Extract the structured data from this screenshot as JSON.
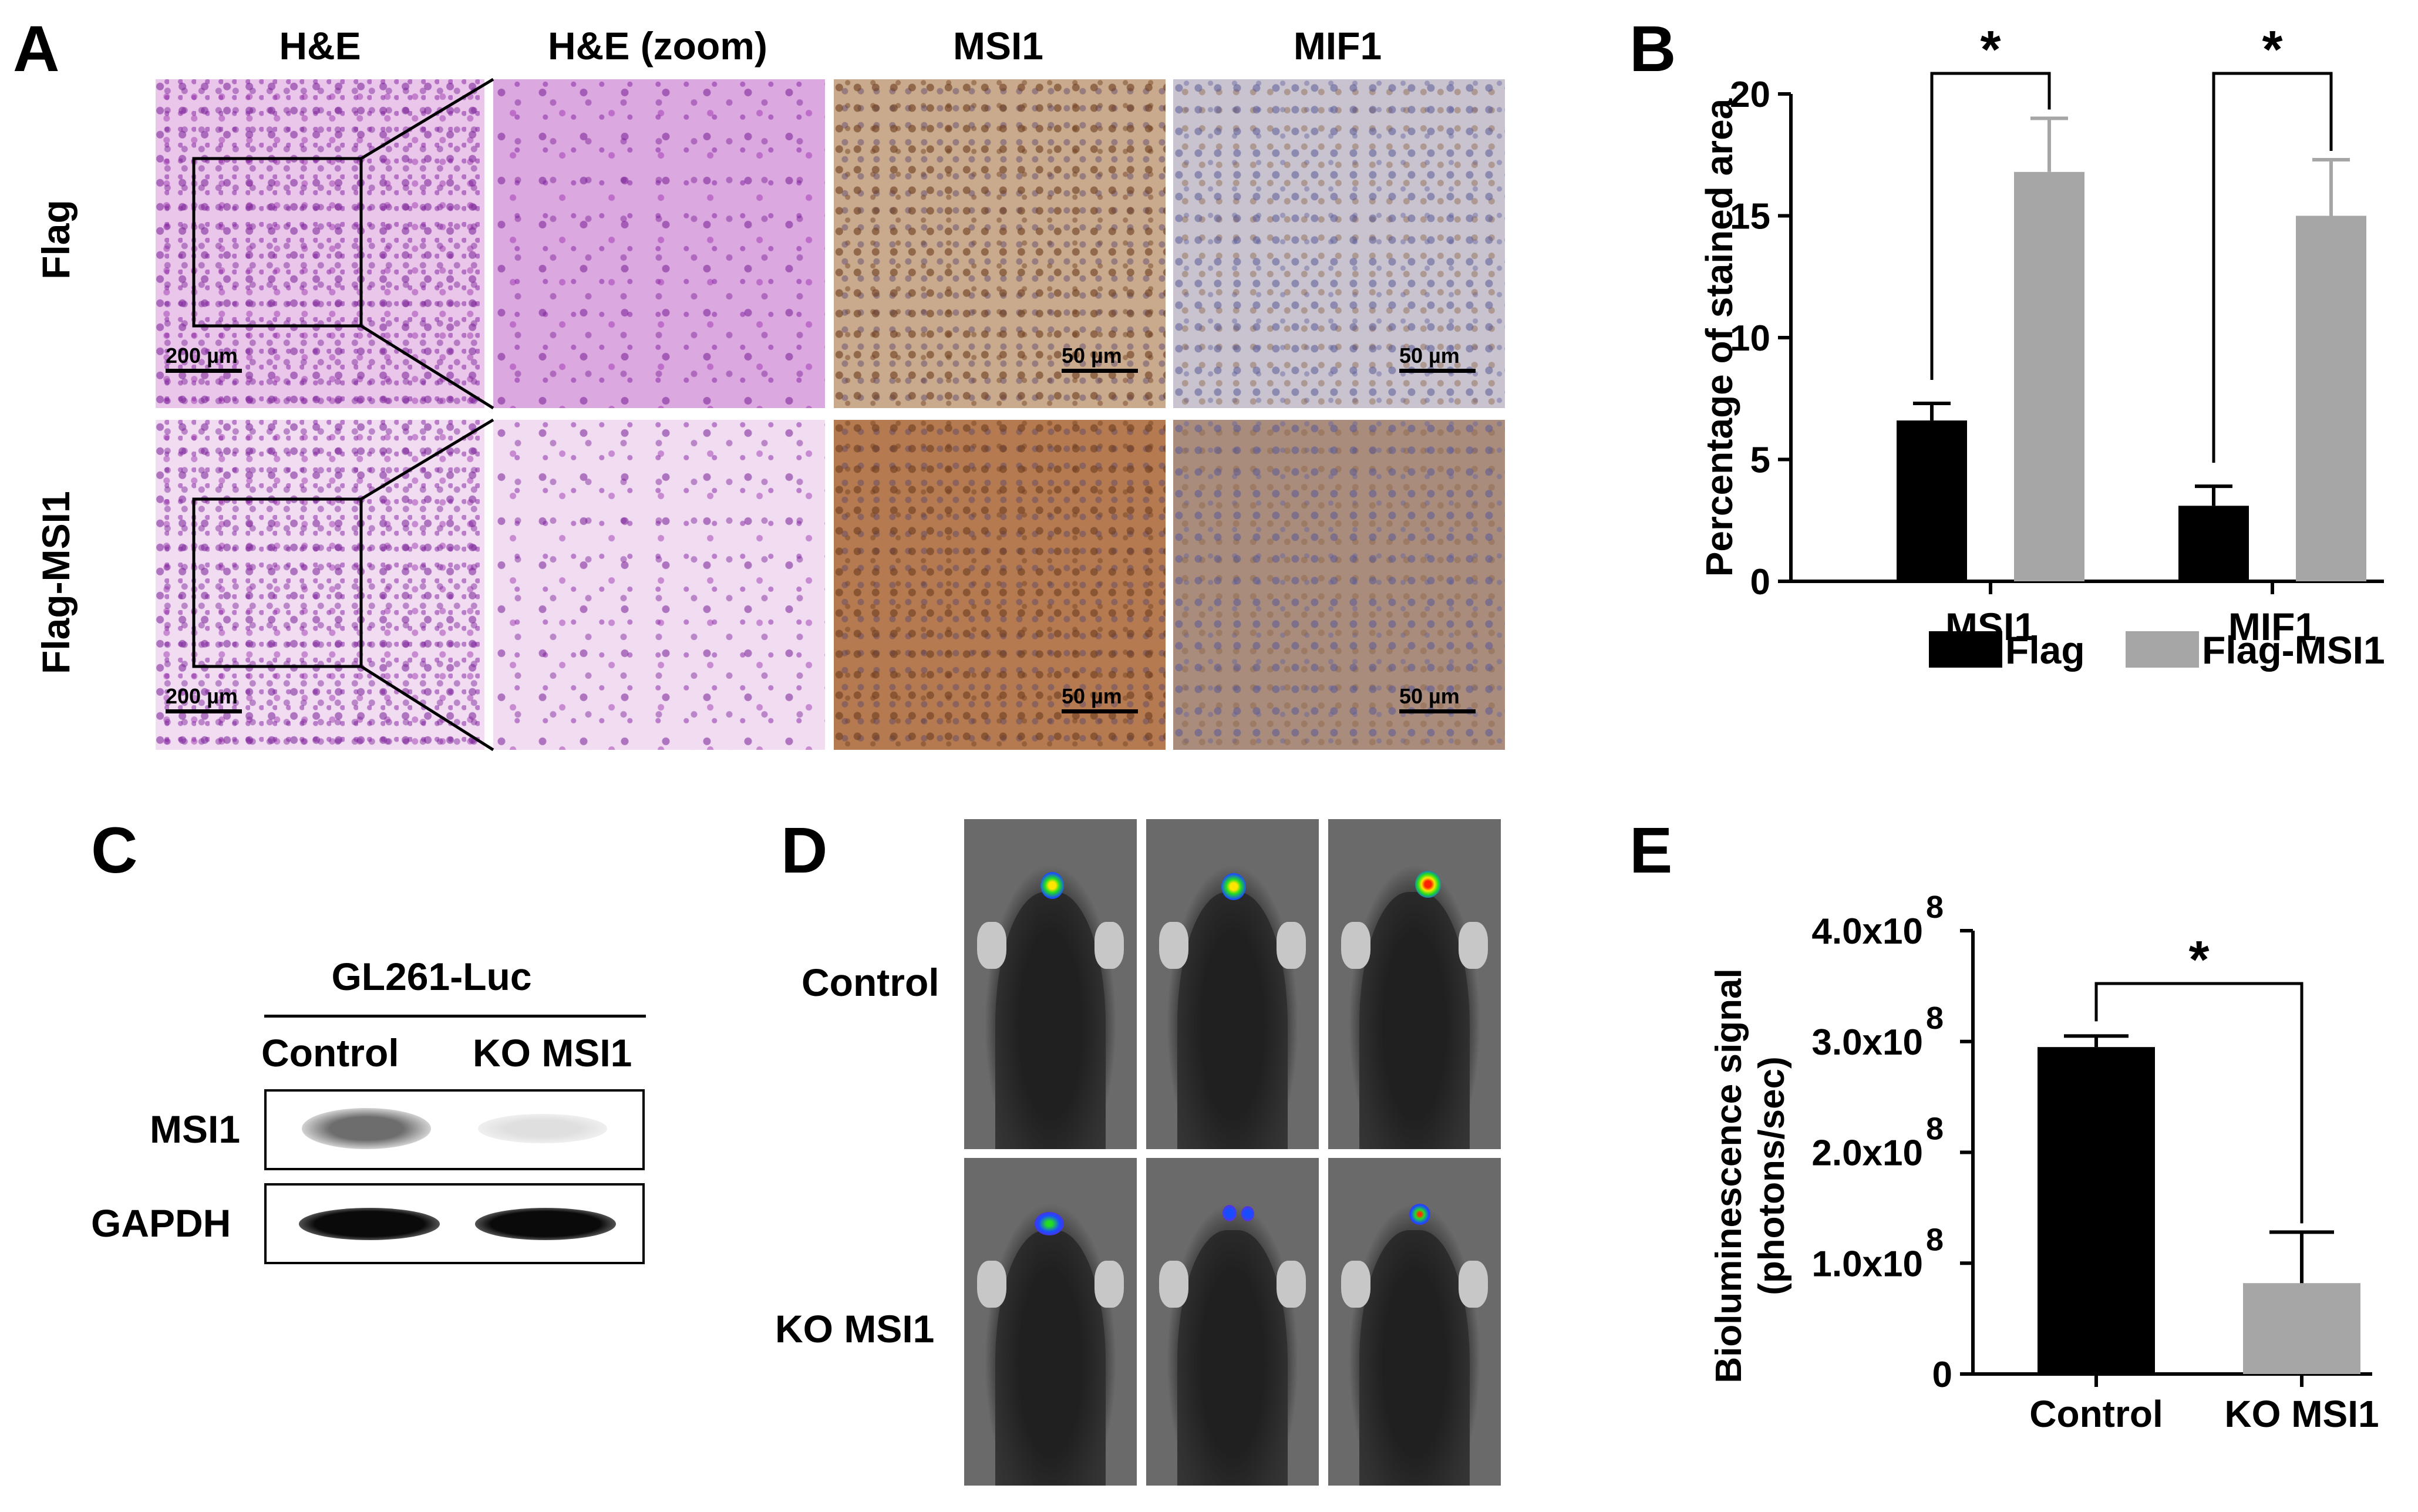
{
  "panel_a": {
    "letter": "A",
    "col_titles": [
      "H&E",
      "H&E (zoom)",
      "MSI1",
      "MIF1"
    ],
    "row_labels": [
      "Flag",
      "Flag-MSI1"
    ],
    "scale_200": "200 µm",
    "scale_50": "50 µm"
  },
  "panel_b": {
    "letter": "B"
  },
  "panel_c": {
    "letter": "C",
    "cell_line": "GL261-Luc",
    "lanes": [
      "Control",
      "KO MSI1"
    ],
    "rows": [
      "MSI1",
      "GAPDH"
    ]
  },
  "panel_d": {
    "letter": "D",
    "row_labels": [
      "Control",
      "KO MSI1"
    ]
  },
  "panel_e": {
    "letter": "E"
  },
  "chart_data": [
    {
      "type": "bar",
      "panel": "B",
      "ylabel": "Percentage of stained area",
      "categories": [
        "MSI1",
        "MIF1"
      ],
      "series": [
        {
          "name": "Flag",
          "values": [
            6.6,
            3.1
          ],
          "errors": [
            0.7,
            0.8
          ],
          "color": "#000000"
        },
        {
          "name": "Flag-MSI1",
          "values": [
            16.8,
            15.0
          ],
          "errors": [
            2.2,
            2.3
          ],
          "color": "#a6a6a6"
        }
      ],
      "ylim": [
        0,
        20
      ],
      "yticks": [
        "0",
        "5",
        "10",
        "15",
        "20"
      ],
      "significance": [
        "*",
        "*"
      ],
      "legend": "bottom"
    },
    {
      "type": "bar",
      "panel": "E",
      "ylabel": "Bioluminescence signal",
      "ylabel2": "(photons/sec)",
      "categories": [
        "Control",
        "KO MSI1"
      ],
      "values": [
        295000000,
        82000000
      ],
      "errors": [
        10000000,
        46000000
      ],
      "colors": [
        "#000000",
        "#a6a6a6"
      ],
      "ylim": [
        0,
        400000000
      ],
      "yticks": [
        {
          "base": "0",
          "exp": ""
        },
        {
          "base": "1.0x10",
          "exp": "8"
        },
        {
          "base": "2.0x10",
          "exp": "8"
        },
        {
          "base": "3.0x10",
          "exp": "8"
        },
        {
          "base": "4.0x10",
          "exp": "8"
        }
      ],
      "significance": "*"
    }
  ]
}
